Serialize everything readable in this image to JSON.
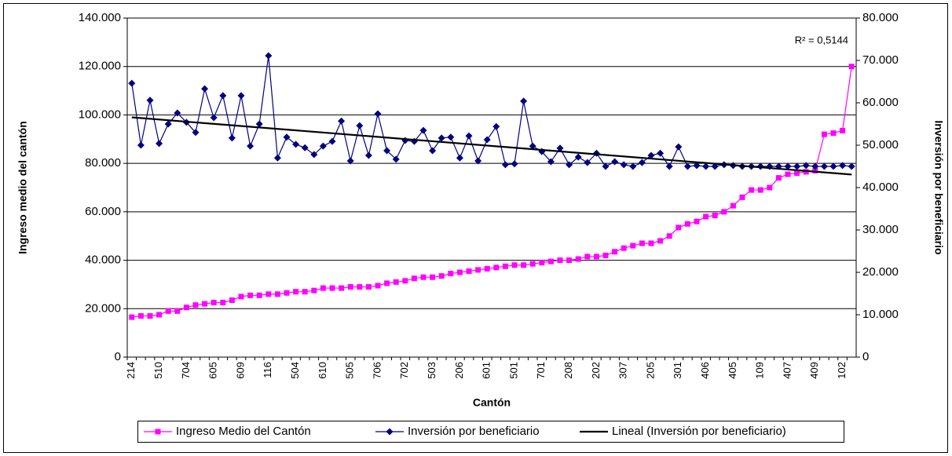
{
  "chart_data": {
    "type": "line",
    "x_label": "Cantón",
    "y_label": "Ingreso medio del cantón",
    "y2_label": "Inversión por beneficiario",
    "categories": [
      "214",
      null,
      null,
      "510",
      null,
      null,
      "704",
      null,
      null,
      "605",
      null,
      null,
      "609",
      null,
      null,
      "116",
      null,
      null,
      "504",
      null,
      null,
      "610",
      null,
      null,
      "505",
      null,
      null,
      "706",
      null,
      null,
      "702",
      null,
      null,
      "503",
      null,
      null,
      "206",
      null,
      null,
      "601",
      null,
      null,
      "501",
      null,
      null,
      "701",
      null,
      null,
      "208",
      null,
      null,
      "202",
      null,
      null,
      "307",
      null,
      null,
      "205",
      null,
      null,
      "301",
      null,
      null,
      "406",
      null,
      null,
      "405",
      null,
      null,
      "109",
      null,
      null,
      "407",
      null,
      null,
      "409",
      null,
      null,
      "102",
      null
    ],
    "series": [
      {
        "name": "Ingreso Medio del Cantón",
        "color": "#ff00ff",
        "marker": "square",
        "axis": "y",
        "values": [
          16500,
          17000,
          17000,
          17500,
          19000,
          19000,
          20500,
          21500,
          22000,
          22500,
          22500,
          23500,
          25000,
          25500,
          25500,
          26000,
          26000,
          26500,
          27000,
          27000,
          27500,
          28500,
          28500,
          28500,
          29000,
          29000,
          29000,
          29500,
          30500,
          31000,
          31500,
          32500,
          33000,
          33000,
          33500,
          34500,
          35000,
          35500,
          36000,
          36500,
          37000,
          37500,
          38000,
          38000,
          38500,
          39000,
          39500,
          40000,
          40000,
          40500,
          41500,
          41500,
          42000,
          43500,
          45000,
          46000,
          47000,
          47000,
          48000,
          50000,
          53500,
          55000,
          56000,
          58000,
          58500,
          60000,
          62500,
          66000,
          69000,
          69000,
          70000,
          74000,
          75500,
          76000,
          76500,
          77000,
          92000,
          92500,
          93500,
          120000
        ]
      },
      {
        "name": "Inversión por beneficiario",
        "color": "#000080",
        "marker": "diamond",
        "axis": "y2",
        "values": [
          64600,
          50000,
          60600,
          50400,
          55000,
          57600,
          55400,
          53000,
          63300,
          56500,
          61700,
          51700,
          61700,
          49800,
          55000,
          71100,
          47000,
          51900,
          50200,
          49400,
          47800,
          49800,
          50900,
          55700,
          46300,
          54600,
          47600,
          57400,
          48700,
          46700,
          51100,
          50900,
          53500,
          48700,
          51700,
          51900,
          47000,
          52200,
          46300,
          51300,
          54400,
          45400,
          45600,
          60400,
          49800,
          48500,
          46100,
          49300,
          45400,
          47200,
          45900,
          48100,
          45000,
          46100,
          45400,
          45000,
          45900,
          47600,
          48100,
          45000,
          49600,
          45000,
          45200,
          45000,
          45000,
          45400,
          45200,
          45000,
          45000,
          45000,
          45000,
          45000,
          45000,
          45000,
          45200,
          45000,
          45000,
          45000,
          45200,
          45000
        ]
      }
    ],
    "trendline": {
      "name": "Lineal (Inversión por beneficiario)",
      "of_series": 1,
      "color": "#000000",
      "r2_label": "R² = 0,5144"
    },
    "ylim": [
      0,
      140000
    ],
    "yticks": [
      0,
      {
        "value": 20000,
        "label": "20.000"
      },
      {
        "value": 40000,
        "label": "40.000"
      },
      {
        "value": 60000,
        "label": "60.000"
      },
      {
        "value": 80000,
        "label": "80.000"
      },
      {
        "value": 100000,
        "label": "100.000"
      },
      {
        "value": 120000,
        "label": "120.000"
      },
      {
        "value": 140000,
        "label": "140.000"
      }
    ],
    "y2lim": [
      0,
      80000
    ],
    "y2ticks": [
      0,
      {
        "value": 10000,
        "label": "10.000"
      },
      {
        "value": 20000,
        "label": "20.000"
      },
      {
        "value": 30000,
        "label": "30.000"
      },
      {
        "value": 40000,
        "label": "40.000"
      },
      {
        "value": 50000,
        "label": "50.000"
      },
      {
        "value": 60000,
        "label": "60.000"
      },
      {
        "value": 70000,
        "label": "70.000"
      },
      {
        "value": 80000,
        "label": "80.000"
      }
    ],
    "grid": true,
    "legend": "bottom"
  }
}
